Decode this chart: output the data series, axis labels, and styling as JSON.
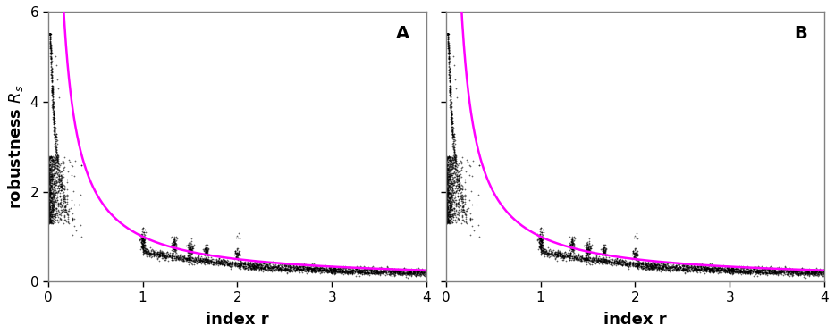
{
  "panel_labels": [
    "A",
    "B"
  ],
  "xlabel": "index r",
  "ylabel": "robustness $R_s$",
  "xlim": [
    0,
    4
  ],
  "ylim": [
    0,
    6
  ],
  "xticks": [
    0,
    1,
    2,
    3,
    4
  ],
  "yticks": [
    0,
    2,
    4,
    6
  ],
  "curve_color": "#ff00ff",
  "dot_color": "#000000",
  "dot_size": 1.5,
  "dot_alpha": 0.6,
  "curve_linewidth": 1.8,
  "background_color": "#ffffff",
  "figsize": [
    9.34,
    3.74
  ],
  "dpi": 100
}
